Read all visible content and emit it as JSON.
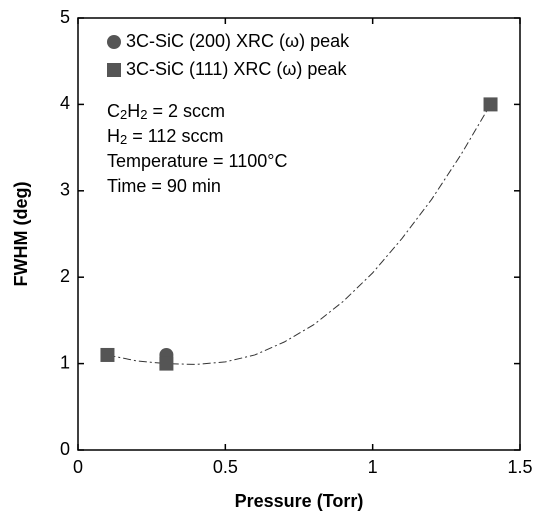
{
  "chart_data": {
    "type": "scatter",
    "xlabel": "Pressure (Torr)",
    "ylabel": "FWHM (deg)",
    "xlim": [
      0,
      1.5
    ],
    "ylim": [
      0,
      5
    ],
    "xticks": [
      0,
      0.5,
      1,
      1.5
    ],
    "yticks": [
      0,
      1,
      2,
      3,
      4,
      5
    ],
    "series": [
      {
        "name": "3C-SiC (200) XRC (ω) peak",
        "color": "#555555",
        "marker": "circle",
        "x": [
          0.3
        ],
        "values": [
          1.1
        ]
      },
      {
        "name": "3C-SiC (111) XRC (ω) peak",
        "color": "#555555",
        "marker": "square",
        "x": [
          0.1,
          0.3,
          1.4
        ],
        "values": [
          1.1,
          1.0,
          4.0
        ]
      }
    ],
    "trend": {
      "color": "#333333",
      "x": [
        0.1,
        0.2,
        0.3,
        0.4,
        0.5,
        0.6,
        0.7,
        0.8,
        0.9,
        1.0,
        1.1,
        1.2,
        1.3,
        1.4
      ],
      "values": [
        1.1,
        1.03,
        1.0,
        0.99,
        1.02,
        1.1,
        1.25,
        1.45,
        1.72,
        2.05,
        2.45,
        2.9,
        3.42,
        4.0
      ]
    },
    "annotations": [
      [
        {
          "t": "C"
        },
        {
          "t": "2",
          "sub": true
        },
        {
          "t": "H"
        },
        {
          "t": "2",
          "sub": true
        },
        {
          "t": " = 2 sccm"
        }
      ],
      [
        {
          "t": "H"
        },
        {
          "t": "2",
          "sub": true
        },
        {
          "t": " = 112 sccm"
        }
      ],
      [
        {
          "t": "Temperature = 1100°C"
        }
      ],
      [
        {
          "t": "Time = 90 min"
        }
      ]
    ]
  }
}
